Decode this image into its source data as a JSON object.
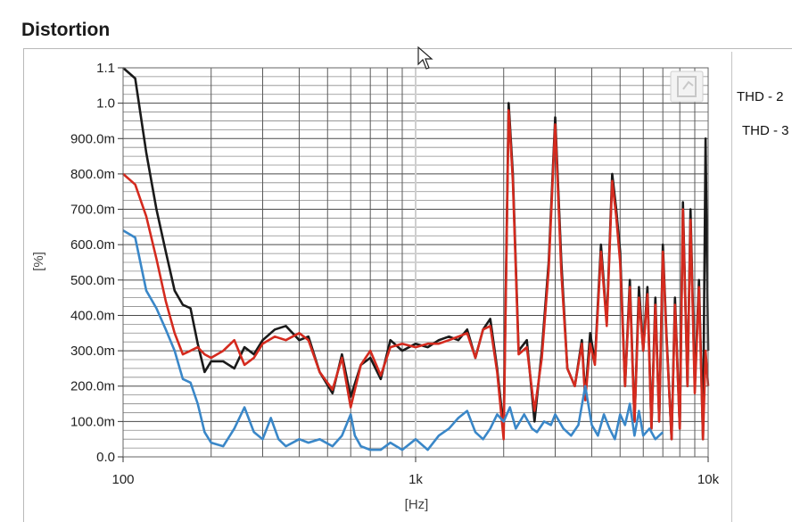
{
  "panel": {
    "title": "Distortion"
  },
  "legend": [
    {
      "label": "THD - 2",
      "color": "#d42a1e"
    },
    {
      "label": "THD - 3",
      "color": "#3a87c8"
    }
  ],
  "chart_data": {
    "type": "line",
    "xscale": "log",
    "xlim": [
      100,
      10000
    ],
    "ylim": [
      0,
      1.1
    ],
    "xlabel": "[Hz]",
    "ylabel": "[%]",
    "grid": true,
    "x_tick_labels": [
      "100",
      "1k",
      "10k"
    ],
    "y_tick_labels": [
      "0.0",
      "100.0m",
      "200.0m",
      "300.0m",
      "400.0m",
      "500.0m",
      "600.0m",
      "700.0m",
      "800.0m",
      "900.0m",
      "1.0",
      "1.1"
    ],
    "y_tick_values": [
      0,
      0.1,
      0.2,
      0.3,
      0.4,
      0.5,
      0.6,
      0.7,
      0.8,
      0.9,
      1.0,
      1.1
    ],
    "series": [
      {
        "color": "#1a1a1a",
        "points": [
          [
            100,
            1.1
          ],
          [
            110,
            1.07
          ],
          [
            120,
            0.86
          ],
          [
            130,
            0.7
          ],
          [
            140,
            0.58
          ],
          [
            150,
            0.47
          ],
          [
            160,
            0.43
          ],
          [
            170,
            0.42
          ],
          [
            180,
            0.32
          ],
          [
            190,
            0.24
          ],
          [
            200,
            0.27
          ],
          [
            220,
            0.27
          ],
          [
            240,
            0.25
          ],
          [
            260,
            0.31
          ],
          [
            280,
            0.29
          ],
          [
            300,
            0.33
          ],
          [
            330,
            0.36
          ],
          [
            360,
            0.37
          ],
          [
            400,
            0.33
          ],
          [
            430,
            0.34
          ],
          [
            470,
            0.24
          ],
          [
            520,
            0.18
          ],
          [
            560,
            0.29
          ],
          [
            600,
            0.17
          ],
          [
            650,
            0.26
          ],
          [
            700,
            0.28
          ],
          [
            760,
            0.22
          ],
          [
            820,
            0.33
          ],
          [
            900,
            0.3
          ],
          [
            1000,
            0.32
          ],
          [
            1100,
            0.31
          ],
          [
            1200,
            0.33
          ],
          [
            1300,
            0.34
          ],
          [
            1400,
            0.33
          ],
          [
            1500,
            0.36
          ],
          [
            1600,
            0.28
          ],
          [
            1700,
            0.36
          ],
          [
            1800,
            0.39
          ],
          [
            1900,
            0.25
          ],
          [
            2000,
            0.08
          ],
          [
            2080,
            1.0
          ],
          [
            2150,
            0.8
          ],
          [
            2250,
            0.3
          ],
          [
            2400,
            0.33
          ],
          [
            2550,
            0.1
          ],
          [
            2700,
            0.3
          ],
          [
            2850,
            0.55
          ],
          [
            3000,
            0.96
          ],
          [
            3150,
            0.55
          ],
          [
            3300,
            0.25
          ],
          [
            3500,
            0.2
          ],
          [
            3700,
            0.33
          ],
          [
            3800,
            0.17
          ],
          [
            3950,
            0.35
          ],
          [
            4100,
            0.27
          ],
          [
            4300,
            0.6
          ],
          [
            4500,
            0.38
          ],
          [
            4700,
            0.8
          ],
          [
            4850,
            0.7
          ],
          [
            5000,
            0.58
          ],
          [
            5200,
            0.2
          ],
          [
            5400,
            0.5
          ],
          [
            5600,
            0.1
          ],
          [
            5800,
            0.48
          ],
          [
            6000,
            0.3
          ],
          [
            6200,
            0.48
          ],
          [
            6400,
            0.08
          ],
          [
            6600,
            0.45
          ],
          [
            6800,
            0.1
          ],
          [
            7000,
            0.6
          ],
          [
            7200,
            0.35
          ],
          [
            7500,
            0.05
          ],
          [
            7700,
            0.45
          ],
          [
            8000,
            0.08
          ],
          [
            8200,
            0.72
          ],
          [
            8500,
            0.2
          ],
          [
            8700,
            0.7
          ],
          [
            9000,
            0.2
          ],
          [
            9300,
            0.5
          ],
          [
            9600,
            0.05
          ],
          [
            9800,
            0.9
          ],
          [
            10000,
            0.3
          ]
        ]
      },
      {
        "color": "#d42a1e",
        "points": [
          [
            100,
            0.8
          ],
          [
            110,
            0.77
          ],
          [
            120,
            0.68
          ],
          [
            130,
            0.56
          ],
          [
            140,
            0.44
          ],
          [
            150,
            0.35
          ],
          [
            160,
            0.29
          ],
          [
            170,
            0.3
          ],
          [
            180,
            0.31
          ],
          [
            190,
            0.29
          ],
          [
            200,
            0.28
          ],
          [
            220,
            0.3
          ],
          [
            240,
            0.33
          ],
          [
            260,
            0.26
          ],
          [
            280,
            0.28
          ],
          [
            300,
            0.32
          ],
          [
            330,
            0.34
          ],
          [
            360,
            0.33
          ],
          [
            400,
            0.35
          ],
          [
            430,
            0.33
          ],
          [
            470,
            0.24
          ],
          [
            520,
            0.19
          ],
          [
            560,
            0.28
          ],
          [
            600,
            0.14
          ],
          [
            650,
            0.26
          ],
          [
            700,
            0.3
          ],
          [
            760,
            0.23
          ],
          [
            820,
            0.31
          ],
          [
            900,
            0.32
          ],
          [
            1000,
            0.31
          ],
          [
            1100,
            0.32
          ],
          [
            1200,
            0.32
          ],
          [
            1300,
            0.33
          ],
          [
            1400,
            0.34
          ],
          [
            1500,
            0.35
          ],
          [
            1600,
            0.28
          ],
          [
            1700,
            0.36
          ],
          [
            1800,
            0.37
          ],
          [
            1900,
            0.24
          ],
          [
            2000,
            0.05
          ],
          [
            2080,
            0.98
          ],
          [
            2150,
            0.78
          ],
          [
            2250,
            0.29
          ],
          [
            2400,
            0.31
          ],
          [
            2550,
            0.13
          ],
          [
            2700,
            0.28
          ],
          [
            2850,
            0.53
          ],
          [
            3000,
            0.94
          ],
          [
            3150,
            0.52
          ],
          [
            3300,
            0.25
          ],
          [
            3500,
            0.2
          ],
          [
            3700,
            0.32
          ],
          [
            3800,
            0.16
          ],
          [
            3950,
            0.32
          ],
          [
            4100,
            0.26
          ],
          [
            4300,
            0.58
          ],
          [
            4500,
            0.37
          ],
          [
            4700,
            0.78
          ],
          [
            4850,
            0.68
          ],
          [
            5000,
            0.55
          ],
          [
            5200,
            0.2
          ],
          [
            5400,
            0.48
          ],
          [
            5600,
            0.1
          ],
          [
            5800,
            0.45
          ],
          [
            6000,
            0.3
          ],
          [
            6200,
            0.46
          ],
          [
            6400,
            0.08
          ],
          [
            6600,
            0.43
          ],
          [
            6800,
            0.1
          ],
          [
            7000,
            0.58
          ],
          [
            7200,
            0.34
          ],
          [
            7500,
            0.05
          ],
          [
            7700,
            0.43
          ],
          [
            8000,
            0.08
          ],
          [
            8200,
            0.7
          ],
          [
            8500,
            0.2
          ],
          [
            8700,
            0.67
          ],
          [
            9000,
            0.18
          ],
          [
            9300,
            0.48
          ],
          [
            9600,
            0.05
          ],
          [
            9800,
            0.3
          ],
          [
            10000,
            0.2
          ]
        ]
      },
      {
        "color": "#3a87c8",
        "points": [
          [
            100,
            0.64
          ],
          [
            110,
            0.62
          ],
          [
            120,
            0.47
          ],
          [
            130,
            0.42
          ],
          [
            140,
            0.36
          ],
          [
            150,
            0.3
          ],
          [
            160,
            0.22
          ],
          [
            170,
            0.21
          ],
          [
            180,
            0.15
          ],
          [
            190,
            0.07
          ],
          [
            200,
            0.04
          ],
          [
            220,
            0.03
          ],
          [
            240,
            0.08
          ],
          [
            260,
            0.14
          ],
          [
            280,
            0.07
          ],
          [
            300,
            0.05
          ],
          [
            320,
            0.11
          ],
          [
            340,
            0.05
          ],
          [
            360,
            0.03
          ],
          [
            400,
            0.05
          ],
          [
            430,
            0.04
          ],
          [
            470,
            0.05
          ],
          [
            520,
            0.03
          ],
          [
            560,
            0.06
          ],
          [
            600,
            0.12
          ],
          [
            620,
            0.06
          ],
          [
            650,
            0.03
          ],
          [
            700,
            0.02
          ],
          [
            760,
            0.02
          ],
          [
            820,
            0.04
          ],
          [
            900,
            0.02
          ],
          [
            1000,
            0.05
          ],
          [
            1100,
            0.02
          ],
          [
            1200,
            0.06
          ],
          [
            1300,
            0.08
          ],
          [
            1400,
            0.11
          ],
          [
            1500,
            0.13
          ],
          [
            1600,
            0.07
          ],
          [
            1700,
            0.05
          ],
          [
            1800,
            0.08
          ],
          [
            1900,
            0.12
          ],
          [
            2000,
            0.1
          ],
          [
            2100,
            0.14
          ],
          [
            2200,
            0.08
          ],
          [
            2350,
            0.12
          ],
          [
            2500,
            0.08
          ],
          [
            2600,
            0.07
          ],
          [
            2750,
            0.1
          ],
          [
            2900,
            0.09
          ],
          [
            3000,
            0.12
          ],
          [
            3200,
            0.08
          ],
          [
            3400,
            0.06
          ],
          [
            3600,
            0.09
          ],
          [
            3800,
            0.2
          ],
          [
            4000,
            0.09
          ],
          [
            4200,
            0.06
          ],
          [
            4400,
            0.12
          ],
          [
            4600,
            0.08
          ],
          [
            4800,
            0.05
          ],
          [
            5000,
            0.12
          ],
          [
            5200,
            0.09
          ],
          [
            5400,
            0.15
          ],
          [
            5600,
            0.06
          ],
          [
            5800,
            0.13
          ],
          [
            6000,
            0.06
          ],
          [
            6300,
            0.08
          ],
          [
            6600,
            0.05
          ],
          [
            7000,
            0.07
          ]
        ]
      }
    ]
  }
}
